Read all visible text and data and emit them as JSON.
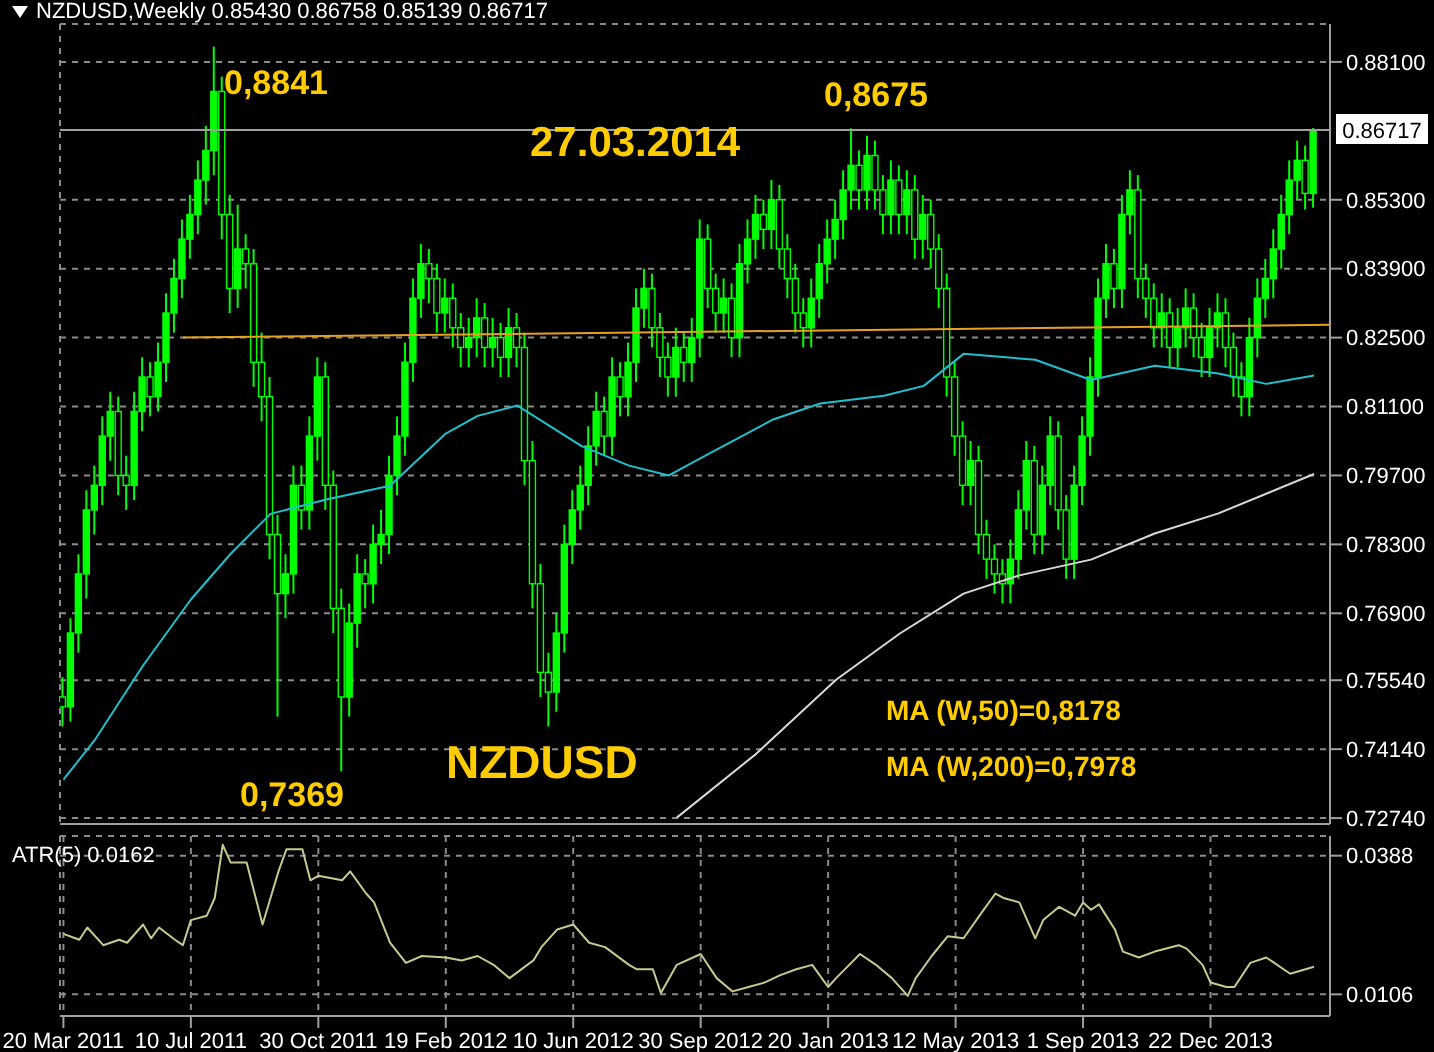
{
  "chart_data": [
    {
      "type": "candlestick",
      "title": "NZDUSD,Weekly 0.85430 0.86758 0.85139 0.86717",
      "color": "#00ff00",
      "grid": true,
      "tick_labels": "y",
      "x": [
        "2011-03-20",
        "2011-03-27",
        "2011-04-03",
        "2011-04-10",
        "2011-04-17",
        "2011-04-24",
        "2011-05-01",
        "2011-05-08",
        "2011-05-15",
        "2011-05-22",
        "2011-05-29",
        "2011-06-05",
        "2011-06-12",
        "2011-06-19",
        "2011-06-26",
        "2011-07-03",
        "2011-07-10",
        "2011-07-17",
        "2011-07-24",
        "2011-07-31",
        "2011-08-07",
        "2011-08-14",
        "2011-08-21",
        "2011-08-28",
        "2011-09-04",
        "2011-09-11",
        "2011-09-18",
        "2011-09-25",
        "2011-10-02",
        "2011-10-09",
        "2011-10-16",
        "2011-10-23",
        "2011-10-30",
        "2011-11-06",
        "2011-11-13",
        "2011-11-20",
        "2011-11-27",
        "2011-12-04",
        "2011-12-11",
        "2011-12-18",
        "2011-12-25",
        "2012-01-01",
        "2012-01-08",
        "2012-01-15",
        "2012-01-22",
        "2012-01-29",
        "2012-02-05",
        "2012-02-12",
        "2012-02-19",
        "2012-02-26",
        "2012-03-04",
        "2012-03-11",
        "2012-03-18",
        "2012-03-25",
        "2012-04-01",
        "2012-04-08",
        "2012-04-15",
        "2012-04-22",
        "2012-04-29",
        "2012-05-06",
        "2012-05-13",
        "2012-05-20",
        "2012-05-27",
        "2012-06-03",
        "2012-06-10",
        "2012-06-17",
        "2012-06-24",
        "2012-07-01",
        "2012-07-08",
        "2012-07-15",
        "2012-07-22",
        "2012-07-29",
        "2012-08-05",
        "2012-08-12",
        "2012-08-19",
        "2012-08-26",
        "2012-09-02",
        "2012-09-09",
        "2012-09-16",
        "2012-09-23",
        "2012-09-30",
        "2012-10-07",
        "2012-10-14",
        "2012-10-21",
        "2012-10-28",
        "2012-11-04",
        "2012-11-11",
        "2012-11-18",
        "2012-11-25",
        "2012-12-02",
        "2012-12-09",
        "2012-12-16",
        "2012-12-23",
        "2012-12-30",
        "2013-01-06",
        "2013-01-13",
        "2013-01-20",
        "2013-01-27",
        "2013-02-03",
        "2013-02-10",
        "2013-02-17",
        "2013-02-24",
        "2013-03-03",
        "2013-03-10",
        "2013-03-17",
        "2013-03-24",
        "2013-03-31",
        "2013-04-07",
        "2013-04-14",
        "2013-04-21",
        "2013-04-28",
        "2013-05-05",
        "2013-05-12",
        "2013-05-19",
        "2013-05-26",
        "2013-06-02",
        "2013-06-09",
        "2013-06-16",
        "2013-06-23",
        "2013-06-30",
        "2013-07-07",
        "2013-07-14",
        "2013-07-21",
        "2013-07-28",
        "2013-08-04",
        "2013-08-11",
        "2013-08-18",
        "2013-08-25",
        "2013-09-01",
        "2013-09-08",
        "2013-09-15",
        "2013-09-22",
        "2013-09-29",
        "2013-10-06",
        "2013-10-13",
        "2013-10-20",
        "2013-10-27",
        "2013-11-03",
        "2013-11-10",
        "2013-11-17",
        "2013-11-24",
        "2013-12-01",
        "2013-12-08",
        "2013-12-15",
        "2013-12-22",
        "2013-12-29",
        "2014-01-05",
        "2014-01-12",
        "2014-01-19",
        "2014-01-26",
        "2014-02-02",
        "2014-02-09",
        "2014-02-16",
        "2014-02-23",
        "2014-03-02",
        "2014-03-09",
        "2014-03-16",
        "2014-03-23"
      ],
      "ohlc": [
        [
          0.752,
          0.756,
          0.746,
          0.75
        ],
        [
          0.75,
          0.768,
          0.747,
          0.765
        ],
        [
          0.765,
          0.781,
          0.761,
          0.777
        ],
        [
          0.777,
          0.794,
          0.772,
          0.79
        ],
        [
          0.79,
          0.799,
          0.785,
          0.795
        ],
        [
          0.795,
          0.809,
          0.791,
          0.805
        ],
        [
          0.805,
          0.814,
          0.8,
          0.81
        ],
        [
          0.81,
          0.813,
          0.793,
          0.797
        ],
        [
          0.797,
          0.801,
          0.79,
          0.795
        ],
        [
          0.795,
          0.814,
          0.792,
          0.81
        ],
        [
          0.81,
          0.821,
          0.806,
          0.817
        ],
        [
          0.817,
          0.82,
          0.809,
          0.813
        ],
        [
          0.813,
          0.824,
          0.81,
          0.82
        ],
        [
          0.82,
          0.834,
          0.816,
          0.83
        ],
        [
          0.83,
          0.841,
          0.826,
          0.837
        ],
        [
          0.837,
          0.849,
          0.833,
          0.845
        ],
        [
          0.845,
          0.854,
          0.841,
          0.85
        ],
        [
          0.85,
          0.861,
          0.846,
          0.857
        ],
        [
          0.857,
          0.868,
          0.852,
          0.863
        ],
        [
          0.863,
          0.8841,
          0.858,
          0.875
        ],
        [
          0.875,
          0.878,
          0.845,
          0.85
        ],
        [
          0.85,
          0.854,
          0.83,
          0.835
        ],
        [
          0.835,
          0.852,
          0.831,
          0.843
        ],
        [
          0.843,
          0.846,
          0.835,
          0.84
        ],
        [
          0.84,
          0.843,
          0.815,
          0.82
        ],
        [
          0.82,
          0.826,
          0.808,
          0.813
        ],
        [
          0.813,
          0.817,
          0.78,
          0.785
        ],
        [
          0.785,
          0.789,
          0.748,
          0.773
        ],
        [
          0.773,
          0.781,
          0.768,
          0.777
        ],
        [
          0.777,
          0.799,
          0.773,
          0.795
        ],
        [
          0.795,
          0.799,
          0.786,
          0.79
        ],
        [
          0.79,
          0.809,
          0.786,
          0.805
        ],
        [
          0.805,
          0.821,
          0.8,
          0.817
        ],
        [
          0.817,
          0.82,
          0.79,
          0.795
        ],
        [
          0.795,
          0.798,
          0.765,
          0.77
        ],
        [
          0.77,
          0.774,
          0.7369,
          0.752
        ],
        [
          0.752,
          0.771,
          0.748,
          0.767
        ],
        [
          0.767,
          0.781,
          0.762,
          0.777
        ],
        [
          0.777,
          0.78,
          0.77,
          0.775
        ],
        [
          0.775,
          0.787,
          0.771,
          0.783
        ],
        [
          0.783,
          0.79,
          0.779,
          0.785
        ],
        [
          0.785,
          0.801,
          0.781,
          0.797
        ],
        [
          0.797,
          0.809,
          0.793,
          0.805
        ],
        [
          0.805,
          0.824,
          0.801,
          0.82
        ],
        [
          0.82,
          0.837,
          0.816,
          0.833
        ],
        [
          0.833,
          0.844,
          0.829,
          0.84
        ],
        [
          0.84,
          0.843,
          0.832,
          0.837
        ],
        [
          0.837,
          0.84,
          0.826,
          0.83
        ],
        [
          0.83,
          0.837,
          0.826,
          0.833
        ],
        [
          0.833,
          0.836,
          0.823,
          0.827
        ],
        [
          0.827,
          0.83,
          0.819,
          0.823
        ],
        [
          0.823,
          0.829,
          0.819,
          0.825
        ],
        [
          0.825,
          0.833,
          0.821,
          0.829
        ],
        [
          0.829,
          0.832,
          0.819,
          0.823
        ],
        [
          0.823,
          0.829,
          0.819,
          0.825
        ],
        [
          0.825,
          0.828,
          0.817,
          0.821
        ],
        [
          0.821,
          0.831,
          0.817,
          0.827
        ],
        [
          0.827,
          0.83,
          0.819,
          0.823
        ],
        [
          0.823,
          0.826,
          0.795,
          0.8
        ],
        [
          0.8,
          0.804,
          0.77,
          0.775
        ],
        [
          0.775,
          0.779,
          0.752,
          0.757
        ],
        [
          0.757,
          0.761,
          0.746,
          0.753
        ],
        [
          0.753,
          0.769,
          0.749,
          0.765
        ],
        [
          0.765,
          0.787,
          0.761,
          0.783
        ],
        [
          0.783,
          0.794,
          0.779,
          0.79
        ],
        [
          0.79,
          0.799,
          0.786,
          0.795
        ],
        [
          0.795,
          0.807,
          0.791,
          0.803
        ],
        [
          0.803,
          0.814,
          0.799,
          0.81
        ],
        [
          0.81,
          0.813,
          0.801,
          0.805
        ],
        [
          0.805,
          0.821,
          0.801,
          0.817
        ],
        [
          0.817,
          0.82,
          0.809,
          0.813
        ],
        [
          0.813,
          0.824,
          0.809,
          0.82
        ],
        [
          0.82,
          0.835,
          0.816,
          0.831
        ],
        [
          0.831,
          0.839,
          0.827,
          0.835
        ],
        [
          0.835,
          0.838,
          0.823,
          0.827
        ],
        [
          0.827,
          0.83,
          0.817,
          0.821
        ],
        [
          0.821,
          0.824,
          0.813,
          0.817
        ],
        [
          0.817,
          0.827,
          0.813,
          0.823
        ],
        [
          0.823,
          0.826,
          0.816,
          0.82
        ],
        [
          0.82,
          0.829,
          0.816,
          0.825
        ],
        [
          0.825,
          0.849,
          0.821,
          0.845
        ],
        [
          0.845,
          0.848,
          0.831,
          0.835
        ],
        [
          0.835,
          0.838,
          0.826,
          0.83
        ],
        [
          0.83,
          0.837,
          0.826,
          0.833
        ],
        [
          0.833,
          0.836,
          0.821,
          0.825
        ],
        [
          0.825,
          0.844,
          0.821,
          0.84
        ],
        [
          0.84,
          0.849,
          0.836,
          0.845
        ],
        [
          0.845,
          0.854,
          0.841,
          0.85
        ],
        [
          0.85,
          0.853,
          0.843,
          0.847
        ],
        [
          0.847,
          0.857,
          0.843,
          0.853
        ],
        [
          0.853,
          0.856,
          0.839,
          0.843
        ],
        [
          0.843,
          0.846,
          0.833,
          0.837
        ],
        [
          0.837,
          0.84,
          0.826,
          0.83
        ],
        [
          0.83,
          0.833,
          0.823,
          0.827
        ],
        [
          0.827,
          0.837,
          0.823,
          0.833
        ],
        [
          0.833,
          0.844,
          0.829,
          0.84
        ],
        [
          0.84,
          0.849,
          0.836,
          0.845
        ],
        [
          0.845,
          0.853,
          0.841,
          0.849
        ],
        [
          0.849,
          0.859,
          0.845,
          0.855
        ],
        [
          0.855,
          0.8675,
          0.851,
          0.86
        ],
        [
          0.86,
          0.863,
          0.851,
          0.855
        ],
        [
          0.855,
          0.866,
          0.851,
          0.862
        ],
        [
          0.862,
          0.865,
          0.851,
          0.855
        ],
        [
          0.855,
          0.858,
          0.846,
          0.85
        ],
        [
          0.85,
          0.861,
          0.846,
          0.857
        ],
        [
          0.857,
          0.86,
          0.846,
          0.85
        ],
        [
          0.85,
          0.859,
          0.846,
          0.855
        ],
        [
          0.855,
          0.858,
          0.841,
          0.845
        ],
        [
          0.845,
          0.854,
          0.841,
          0.85
        ],
        [
          0.85,
          0.853,
          0.839,
          0.843
        ],
        [
          0.843,
          0.846,
          0.831,
          0.835
        ],
        [
          0.835,
          0.838,
          0.813,
          0.817
        ],
        [
          0.817,
          0.82,
          0.801,
          0.805
        ],
        [
          0.805,
          0.808,
          0.791,
          0.795
        ],
        [
          0.795,
          0.804,
          0.791,
          0.8
        ],
        [
          0.8,
          0.803,
          0.781,
          0.785
        ],
        [
          0.785,
          0.788,
          0.776,
          0.78
        ],
        [
          0.78,
          0.783,
          0.773,
          0.777
        ],
        [
          0.777,
          0.78,
          0.771,
          0.775
        ],
        [
          0.775,
          0.784,
          0.771,
          0.78
        ],
        [
          0.78,
          0.794,
          0.776,
          0.79
        ],
        [
          0.79,
          0.804,
          0.786,
          0.8
        ],
        [
          0.8,
          0.803,
          0.781,
          0.785
        ],
        [
          0.785,
          0.799,
          0.781,
          0.795
        ],
        [
          0.795,
          0.809,
          0.791,
          0.805
        ],
        [
          0.805,
          0.808,
          0.786,
          0.79
        ],
        [
          0.79,
          0.793,
          0.776,
          0.78
        ],
        [
          0.78,
          0.799,
          0.776,
          0.795
        ],
        [
          0.795,
          0.809,
          0.791,
          0.805
        ],
        [
          0.805,
          0.821,
          0.801,
          0.817
        ],
        [
          0.817,
          0.837,
          0.813,
          0.833
        ],
        [
          0.833,
          0.844,
          0.829,
          0.84
        ],
        [
          0.84,
          0.843,
          0.831,
          0.835
        ],
        [
          0.835,
          0.854,
          0.831,
          0.85
        ],
        [
          0.85,
          0.859,
          0.846,
          0.855
        ],
        [
          0.855,
          0.858,
          0.833,
          0.837
        ],
        [
          0.837,
          0.84,
          0.829,
          0.833
        ],
        [
          0.833,
          0.836,
          0.823,
          0.827
        ],
        [
          0.827,
          0.834,
          0.823,
          0.83
        ],
        [
          0.83,
          0.833,
          0.819,
          0.823
        ],
        [
          0.823,
          0.831,
          0.819,
          0.827
        ],
        [
          0.827,
          0.835,
          0.823,
          0.831
        ],
        [
          0.831,
          0.834,
          0.821,
          0.825
        ],
        [
          0.825,
          0.828,
          0.817,
          0.821
        ],
        [
          0.821,
          0.831,
          0.817,
          0.827
        ],
        [
          0.827,
          0.834,
          0.823,
          0.83
        ],
        [
          0.83,
          0.833,
          0.819,
          0.823
        ],
        [
          0.823,
          0.826,
          0.813,
          0.817
        ],
        [
          0.817,
          0.82,
          0.809,
          0.813
        ],
        [
          0.813,
          0.829,
          0.809,
          0.825
        ],
        [
          0.825,
          0.837,
          0.821,
          0.833
        ],
        [
          0.833,
          0.841,
          0.829,
          0.837
        ],
        [
          0.837,
          0.847,
          0.833,
          0.843
        ],
        [
          0.843,
          0.854,
          0.839,
          0.85
        ],
        [
          0.85,
          0.861,
          0.846,
          0.857
        ],
        [
          0.857,
          0.865,
          0.853,
          0.861
        ],
        [
          0.861,
          0.864,
          0.851,
          0.8543
        ],
        [
          0.8543,
          0.86758,
          0.85139,
          0.86717
        ]
      ],
      "series": [
        {
          "type": "line",
          "color": "#20c0cc",
          "x": [
            "2011-03-20",
            "2011-04-17",
            "2011-05-29",
            "2011-07-10",
            "2011-08-14",
            "2011-09-18",
            "2011-11-06",
            "2012-01-01",
            "2012-02-19",
            "2012-03-18",
            "2012-04-22",
            "2012-06-17",
            "2012-07-29",
            "2012-09-02",
            "2012-10-07",
            "2012-12-02",
            "2013-01-13",
            "2013-03-10",
            "2013-04-14",
            "2013-05-19",
            "2013-07-21",
            "2013-09-08",
            "2013-11-03",
            "2013-12-29",
            "2014-02-09",
            "2014-03-23"
          ],
          "values": [
            0.7352,
            0.7434,
            0.7584,
            0.7718,
            0.7811,
            0.7892,
            0.7921,
            0.7949,
            0.8055,
            0.8091,
            0.8112,
            0.803,
            0.799,
            0.797,
            0.8014,
            0.8083,
            0.8116,
            0.8132,
            0.8152,
            0.8217,
            0.8205,
            0.8164,
            0.8193,
            0.8177,
            0.8156,
            0.8173
          ]
        },
        {
          "type": "line",
          "color": "#d8d8d8",
          "x": [
            "2012-09-09",
            "2012-11-18",
            "2013-01-27",
            "2013-03-24",
            "2013-05-19",
            "2013-07-07",
            "2013-09-08",
            "2013-11-03",
            "2013-12-29",
            "2014-03-23"
          ],
          "values": [
            0.7275,
            0.7405,
            0.7555,
            0.7649,
            0.773,
            0.7767,
            0.7799,
            0.7852,
            0.7893,
            0.7973
          ]
        },
        {
          "type": "line",
          "color": "#e8a020",
          "x": [
            "2011-07-03",
            "2014-04-06"
          ],
          "values": [
            0.825,
            0.8276
          ]
        }
      ],
      "xlim": [
        "2011-03-17",
        "2014-04-06"
      ],
      "xticks": [
        {
          "value": "2011-03-20",
          "label": null
        },
        {
          "value": "2011-07-10",
          "label": null
        },
        {
          "value": "2011-10-30",
          "label": null
        },
        {
          "value": "2012-02-19",
          "label": null
        },
        {
          "value": "2012-06-10",
          "label": null
        },
        {
          "value": "2012-09-30",
          "label": null
        },
        {
          "value": "2013-01-20",
          "label": null
        },
        {
          "value": "2013-05-12",
          "label": null
        },
        {
          "value": "2013-09-01",
          "label": null
        },
        {
          "value": "2013-12-22",
          "label": null
        }
      ],
      "ylim": [
        0.7262,
        0.8887
      ],
      "yticks": [
        {
          "value": 0.7274,
          "label": "0.72740"
        },
        {
          "value": 0.7414,
          "label": "0.74140"
        },
        {
          "value": 0.7554,
          "label": "0.75540"
        },
        {
          "value": 0.769,
          "label": "0.76900"
        },
        {
          "value": 0.783,
          "label": "0.78300"
        },
        {
          "value": 0.797,
          "label": "0.79700"
        },
        {
          "value": 0.811,
          "label": "0.81100"
        },
        {
          "value": 0.825,
          "label": "0.82500"
        },
        {
          "value": 0.839,
          "label": "0.83900"
        },
        {
          "value": 0.853,
          "label": "0.85300"
        },
        {
          "value": 0.881,
          "label": "0.88100"
        }
      ],
      "ref_lines": [
        {
          "axis": "y",
          "value": 0.86717,
          "label": "0.86717",
          "color": "#a0a0a0"
        }
      ],
      "annotations": [
        "0,8841",
        "27.03.2014",
        "0,8675",
        "0,7369",
        "NZDUSD",
        "MA (W,50)=0,8178",
        "MA (W,200)=0,7978"
      ]
    },
    {
      "type": "line",
      "title": "ATR(5) 0.0162",
      "grid": true,
      "series": [
        {
          "color": "#c8c890",
          "x": [
            "2011-03-20",
            "2011-04-03",
            "2011-04-10",
            "2011-04-24",
            "2011-05-08",
            "2011-05-15",
            "2011-05-29",
            "2011-06-05",
            "2011-06-12",
            "2011-06-26",
            "2011-07-03",
            "2011-07-10",
            "2011-07-24",
            "2011-07-31",
            "2011-08-07",
            "2011-08-14",
            "2011-08-28",
            "2011-09-11",
            "2011-09-25",
            "2011-10-02",
            "2011-10-16",
            "2011-10-23",
            "2011-10-30",
            "2011-11-20",
            "2011-11-27",
            "2011-12-11",
            "2011-12-18",
            "2012-01-01",
            "2012-01-15",
            "2012-01-29",
            "2012-02-19",
            "2012-03-04",
            "2012-03-18",
            "2012-04-01",
            "2012-04-15",
            "2012-05-06",
            "2012-05-13",
            "2012-05-27",
            "2012-06-10",
            "2012-06-24",
            "2012-07-08",
            "2012-07-29",
            "2012-08-05",
            "2012-08-19",
            "2012-08-26",
            "2012-09-09",
            "2012-09-30",
            "2012-10-14",
            "2012-10-28",
            "2012-11-11",
            "2012-11-25",
            "2012-12-09",
            "2012-12-23",
            "2013-01-06",
            "2013-01-20",
            "2013-01-27",
            "2013-02-17",
            "2013-03-03",
            "2013-03-17",
            "2013-03-31",
            "2013-04-07",
            "2013-04-21",
            "2013-05-05",
            "2013-05-19",
            "2013-06-02",
            "2013-06-16",
            "2013-06-23",
            "2013-07-07",
            "2013-07-21",
            "2013-07-28",
            "2013-08-11",
            "2013-08-25",
            "2013-09-01",
            "2013-09-08",
            "2013-09-15",
            "2013-09-29",
            "2013-10-06",
            "2013-10-20",
            "2013-11-03",
            "2013-11-24",
            "2013-12-01",
            "2013-12-15",
            "2013-12-22",
            "2014-01-05",
            "2014-01-12",
            "2014-01-26",
            "2014-02-09",
            "2014-02-16",
            "2014-03-02",
            "2014-03-23"
          ],
          "values": [
            0.0229,
            0.0217,
            0.0242,
            0.0206,
            0.0217,
            0.0211,
            0.0248,
            0.022,
            0.0242,
            0.0217,
            0.0206,
            0.0257,
            0.0266,
            0.0302,
            0.041,
            0.0374,
            0.0374,
            0.0248,
            0.0356,
            0.0401,
            0.0401,
            0.0338,
            0.0347,
            0.0338,
            0.0356,
            0.0311,
            0.0293,
            0.0211,
            0.017,
            0.0184,
            0.0181,
            0.0175,
            0.0184,
            0.0166,
            0.0139,
            0.0175,
            0.0202,
            0.0238,
            0.0248,
            0.0211,
            0.0202,
            0.0166,
            0.0157,
            0.0157,
            0.0109,
            0.0166,
            0.0188,
            0.0139,
            0.0112,
            0.0121,
            0.013,
            0.0145,
            0.0157,
            0.0166,
            0.0121,
            0.0139,
            0.0188,
            0.0166,
            0.0139,
            0.0103,
            0.0139,
            0.0184,
            0.0224,
            0.022,
            0.0266,
            0.0311,
            0.0302,
            0.0293,
            0.022,
            0.0257,
            0.0284,
            0.0266,
            0.0293,
            0.0278,
            0.0289,
            0.0238,
            0.0193,
            0.0181,
            0.0193,
            0.0206,
            0.0199,
            0.0166,
            0.013,
            0.0121,
            0.0121,
            0.017,
            0.0181,
            0.017,
            0.0148,
            0.0162
          ]
        }
      ],
      "xlim": [
        "2011-03-17",
        "2014-04-06"
      ],
      "xticks": [
        {
          "value": "2011-03-20",
          "label": "20 Mar 2011"
        },
        {
          "value": "2011-07-10",
          "label": "10 Jul 2011"
        },
        {
          "value": "2011-10-30",
          "label": "30 Oct 2011"
        },
        {
          "value": "2012-02-19",
          "label": "19 Feb 2012"
        },
        {
          "value": "2012-06-10",
          "label": "10 Jun 2012"
        },
        {
          "value": "2012-09-30",
          "label": "30 Sep 2012"
        },
        {
          "value": "2013-01-20",
          "label": "20 Jan 2013"
        },
        {
          "value": "2013-05-12",
          "label": "12 May 2013"
        },
        {
          "value": "2013-09-01",
          "label": "1 Sep 2013"
        },
        {
          "value": "2013-12-22",
          "label": "22 Dec 2013"
        }
      ],
      "ylim": [
        0.0062,
        0.0428
      ],
      "yticks": [
        0.0106,
        0.0388
      ]
    }
  ]
}
